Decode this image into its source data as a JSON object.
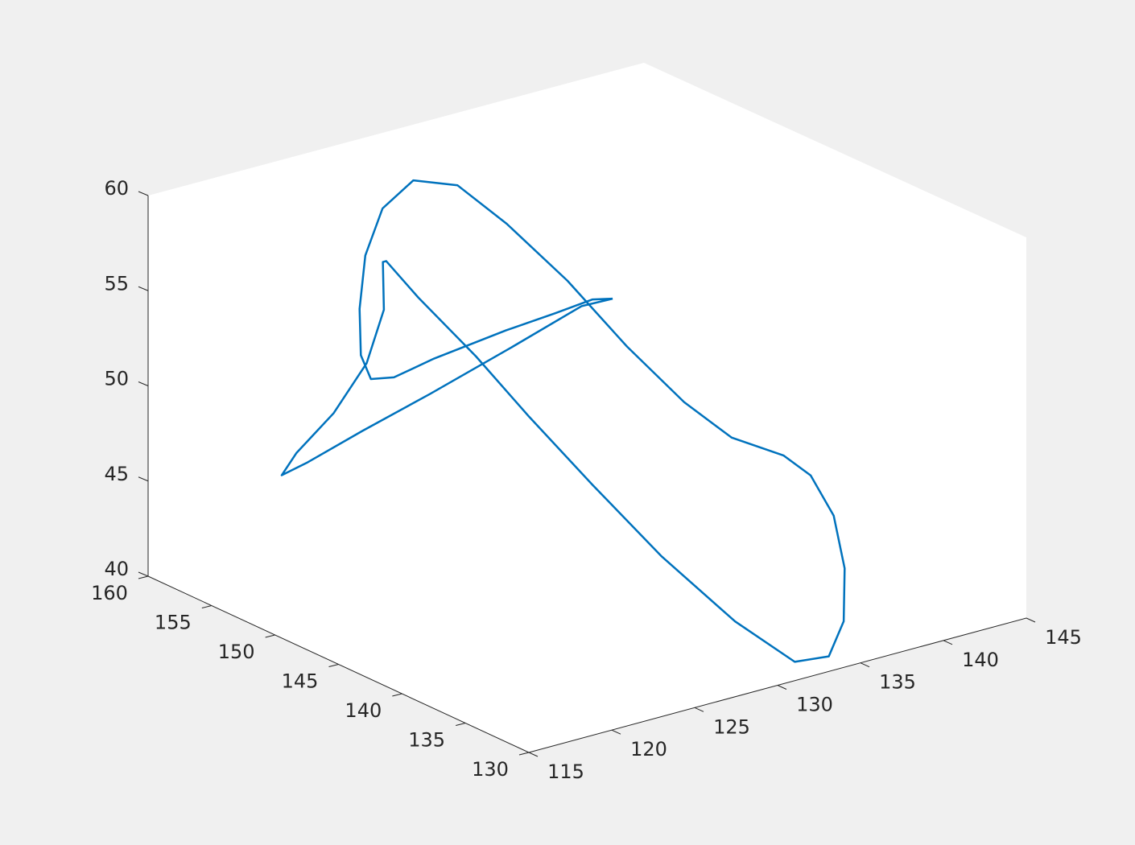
{
  "chart_data": {
    "type": "line3d",
    "color": "#0072bd",
    "x": [
      133.6,
      132.6,
      130.2,
      127.1,
      123.6,
      122.4,
      121.7,
      121.4,
      121.4,
      123.2,
      126.0,
      128.7,
      130.6,
      131.5,
      132.1,
      132.4,
      134.7,
      136.1,
      137.7,
      138.5,
      139.2,
      138.1,
      135.9,
      133.7,
      131.8,
      130.5,
      129.6,
      129.1,
      126.5,
      124.9,
      124.1,
      124.0,
      123.8,
      122.1,
      121.6,
      120.6,
      119.5,
      119.0,
      119.8,
      121.5,
      123.5,
      126.6,
      131.8,
      133.6
    ],
    "y": [
      147.7,
      148.0,
      147.8,
      147.6,
      148.7,
      150.3,
      151.2,
      151.6,
      151.7,
      153.6,
      155.9,
      157.0,
      156.0,
      153.3,
      149.3,
      145.0,
      143.5,
      141.6,
      139.6,
      138.5,
      137.6,
      135.3,
      132.5,
      130.8,
      131.0,
      134.0,
      138.6,
      143.4,
      145.0,
      147.1,
      150.6,
      153.0,
      153.0,
      150.7,
      151.4,
      152.7,
      154.2,
      154.7,
      153.7,
      151.6,
      148.9,
      146.6,
      147.8,
      147.7
    ],
    "z": [
      54.0,
      54.1,
      54.0,
      53.9,
      52.9,
      51.7,
      51.5,
      52.7,
      55.1,
      56.9,
      58.0,
      58.5,
      58.1,
      56.7,
      54.8,
      52.6,
      49.6,
      48.0,
      47.3,
      46.4,
      44.4,
      42.6,
      41.2,
      40.4,
      40.5,
      42.0,
      44.2,
      46.6,
      50.3,
      53.2,
      55.4,
      56.6,
      56.6,
      55.2,
      52.3,
      49.5,
      47.2,
      46.0,
      46.8,
      48.7,
      51.0,
      53.4,
      54.0,
      54.0
    ],
    "xlim": [
      115,
      145
    ],
    "ylim": [
      130,
      160
    ],
    "zlim": [
      40,
      60
    ],
    "xticks": [
      115,
      120,
      125,
      130,
      135,
      140,
      145
    ],
    "yticks": [
      130,
      135,
      140,
      145,
      150,
      155,
      160
    ],
    "zticks": [
      40,
      45,
      50,
      55,
      60
    ],
    "grid": false
  }
}
